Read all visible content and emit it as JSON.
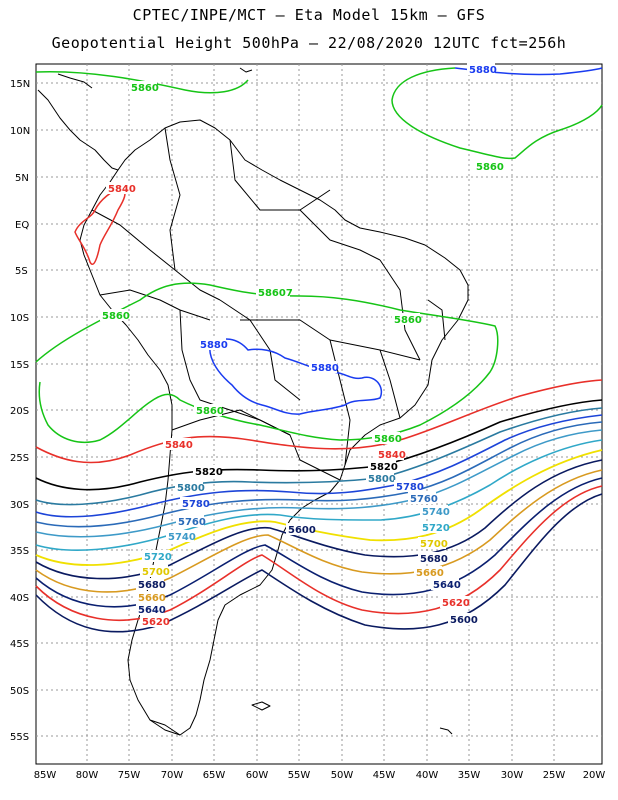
{
  "header": {
    "line1": "CPTEC/INPE/MCT –  Eta Model 15km – GFS",
    "line2": "Geopotential Height 500hPa – 22/08/2020 12UTC fct=256h"
  },
  "map": {
    "variable": "Geopotential Height",
    "level": "500hPa",
    "model": "Eta Model 15km",
    "driver": "GFS",
    "init": "22/08/2020 12UTC",
    "forecast": "fct=256h"
  },
  "axes": {
    "lon_ticks": [
      "85W",
      "80W",
      "75W",
      "70W",
      "65W",
      "60W",
      "55W",
      "50W",
      "45W",
      "40W",
      "35W",
      "30W",
      "25W",
      "20W"
    ],
    "lat_ticks": [
      "15N",
      "10N",
      "5N",
      "EQ",
      "5S",
      "10S",
      "15S",
      "20S",
      "25S",
      "30S",
      "35S",
      "40S",
      "45S",
      "50S",
      "55S"
    ]
  },
  "contours": {
    "c5880": "5880",
    "c5860": "5860",
    "c5840": "5840",
    "c5820": "5820",
    "c5800": "5800",
    "c5780": "5780",
    "c5760": "5760",
    "c5740": "5740",
    "c5720": "5720",
    "c5700": "5700",
    "c5680": "5680",
    "c5660": "5660",
    "c5640": "5640",
    "c5620": "5620",
    "c5600": "5600",
    "c5860b": "58607"
  },
  "colors": {
    "c5880": "#1a3cf0",
    "c5860": "#16c416",
    "c5840": "#e8302a",
    "c5820": "#000000",
    "c5800": "#2a7aa0",
    "c5780": "#1c44d8",
    "c5760": "#2a6ab8",
    "c5740": "#3e9ac8",
    "c5720": "#30a8c8",
    "c5700": "#f0e000",
    "c5680": "#0a1a60",
    "c5660": "#d89a20",
    "c5640": "#0a1f70",
    "c5620": "#e8302a",
    "c5600": "#0a1a60",
    "coast": "#000000",
    "grid": "#888888"
  }
}
